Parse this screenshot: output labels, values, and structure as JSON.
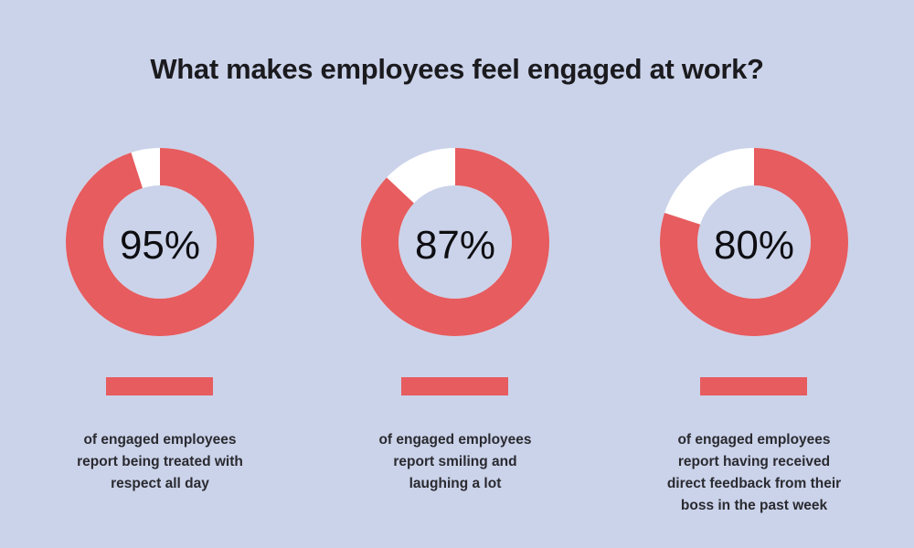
{
  "title": "What makes employees feel engaged at work?",
  "chart_data": {
    "type": "pie",
    "variant": "donut",
    "title": "What makes employees feel engaged at work?",
    "slices": [
      {
        "value": 95,
        "label": "95%",
        "description": [
          "of engaged employees",
          "report being treated with",
          "respect all day"
        ]
      },
      {
        "value": 87,
        "label": "87%",
        "description": [
          "of engaged employees",
          "report smiling and",
          "laughing a lot"
        ]
      },
      {
        "value": 80,
        "label": "80%",
        "description": [
          "of engaged employees",
          "report having received",
          "direct feedback from their",
          "boss in the past week"
        ]
      }
    ],
    "colors": {
      "fill": "#e65c5f",
      "remainder": "#ffffff",
      "background": "#cbd3ea"
    }
  }
}
